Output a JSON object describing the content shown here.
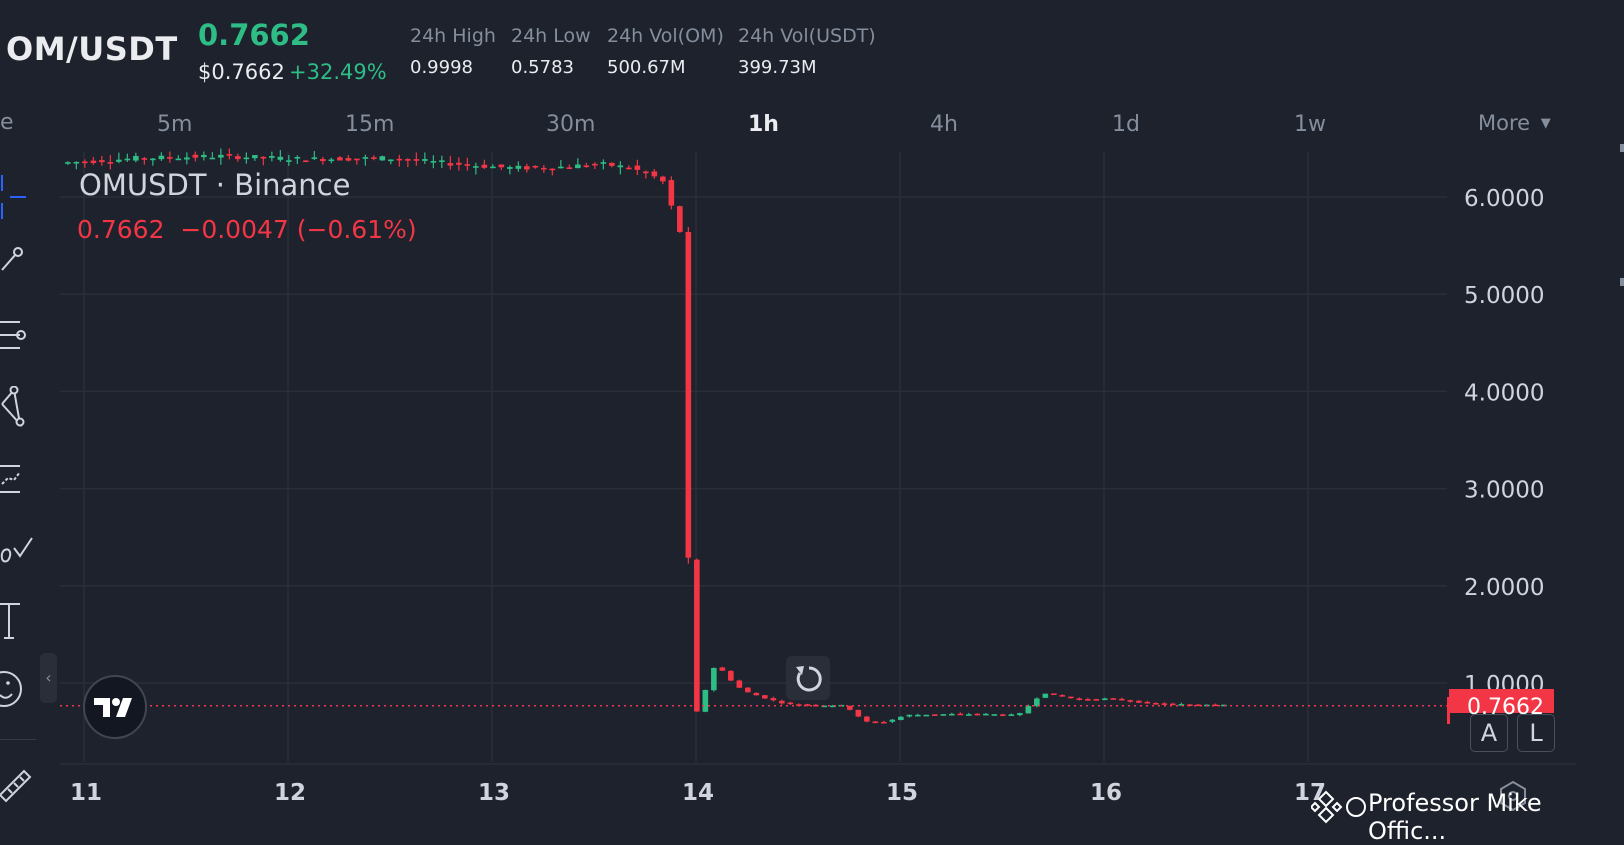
{
  "header": {
    "pair": "OM/USDT",
    "last_price": "0.7662",
    "usd_price": "$0.7662",
    "change_pct": "+32.49%",
    "stats": [
      {
        "label": "24h High",
        "value": "0.9998"
      },
      {
        "label": "24h Low",
        "value": "0.5783"
      },
      {
        "label": "24h Vol(OM)",
        "value": "500.67M"
      },
      {
        "label": "24h Vol(USDT)",
        "value": "399.73M"
      }
    ]
  },
  "intervals": [
    "5m",
    "15m",
    "30m",
    "1h",
    "4h",
    "1d",
    "1w"
  ],
  "active_interval": "1h",
  "more_label": "More",
  "legend": {
    "symbol": "OMUSDT · Binance",
    "values": "0.7662  −0.0047 (−0.61%)"
  },
  "price_tag": "0.7662",
  "bottom_controls": {
    "auto": "A",
    "log": "L"
  },
  "watermark": "Professor Mike Offic...",
  "colors": {
    "background": "#1e222d",
    "up": "#2ebd85",
    "down": "#f23645",
    "grid": "#2a2e39",
    "text": "#d1d4dc"
  },
  "left_toolbar_icons": [
    "crosshair-icon",
    "trend-line-icon",
    "fib-lines-icon",
    "pattern-icon",
    "forecast-icon",
    "brush-icon",
    "text-icon",
    "emoji-icon",
    "ruler-icon"
  ],
  "chart_data": {
    "type": "candlestick",
    "x_ticks": [
      "11",
      "12",
      "13",
      "14",
      "15",
      "16",
      "17"
    ],
    "y_ticks": [
      "6.0000",
      "5.0000",
      "4.0000",
      "3.0000",
      "2.0000",
      "1.0000"
    ],
    "ylim": [
      0.2,
      6.4
    ],
    "x_range": [
      10.9,
      17.7
    ],
    "last_price": 0.7662,
    "path": [
      [
        10.9,
        6.35
      ],
      [
        11.3,
        6.4
      ],
      [
        11.7,
        6.42
      ],
      [
        12.1,
        6.39
      ],
      [
        12.5,
        6.4
      ],
      [
        12.9,
        6.33
      ],
      [
        13.1,
        6.3
      ],
      [
        13.3,
        6.3
      ],
      [
        13.55,
        6.34
      ],
      [
        13.7,
        6.3
      ],
      [
        13.85,
        6.18
      ],
      [
        13.88,
        6.1
      ],
      [
        13.92,
        5.7
      ],
      [
        13.96,
        5.6
      ],
      [
        13.98,
        2.6
      ],
      [
        14.0,
        0.62
      ],
      [
        14.05,
        0.78
      ],
      [
        14.08,
        1.05
      ],
      [
        14.12,
        1.2
      ],
      [
        14.18,
        1.05
      ],
      [
        14.25,
        0.92
      ],
      [
        14.35,
        0.85
      ],
      [
        14.45,
        0.79
      ],
      [
        14.6,
        0.77
      ],
      [
        14.75,
        0.77
      ],
      [
        14.85,
        0.6
      ],
      [
        14.95,
        0.6
      ],
      [
        15.05,
        0.67
      ],
      [
        15.25,
        0.68
      ],
      [
        15.45,
        0.68
      ],
      [
        15.6,
        0.67
      ],
      [
        15.72,
        0.9
      ],
      [
        15.9,
        0.83
      ],
      [
        16.05,
        0.84
      ],
      [
        16.2,
        0.8
      ],
      [
        16.35,
        0.78
      ],
      [
        16.6,
        0.78
      ]
    ]
  }
}
